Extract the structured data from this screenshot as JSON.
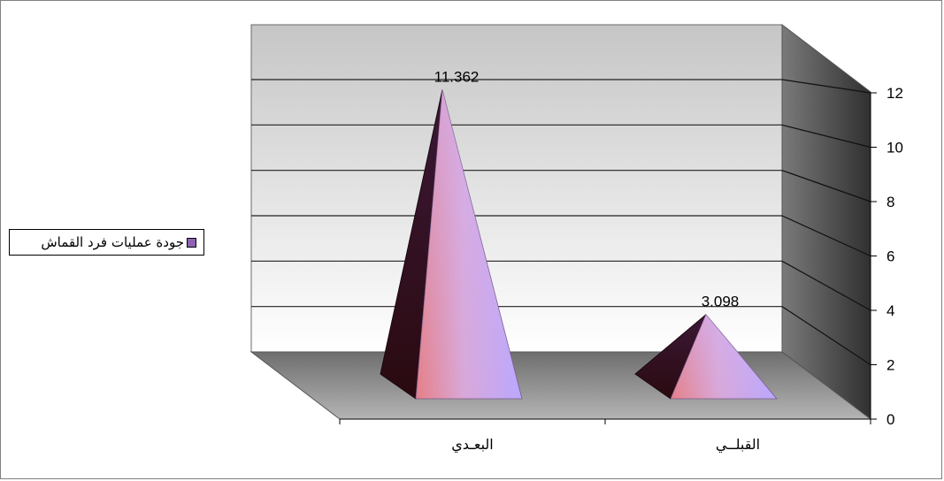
{
  "chart_data": {
    "type": "bar",
    "shape": "pyramid-3d",
    "categories": [
      "البعـدي",
      "القبلــي"
    ],
    "series": [
      {
        "name": "جودة عمليات فرد القماش",
        "values": [
          11.362,
          3.098
        ]
      }
    ],
    "data_labels": [
      "11.362",
      "3.098"
    ],
    "y_ticks": [
      "0",
      "2",
      "4",
      "6",
      "8",
      "10",
      "12"
    ],
    "ylim": [
      0,
      12
    ],
    "grid": true,
    "legend_position": "left",
    "axis_side": "right",
    "colors": {
      "pyramid_light": "#cdb8ff",
      "pyramid_pink": "#e98a8a",
      "pyramid_dark": "#2a0f1a",
      "wall_top": "#c8c8c8",
      "wall_bottom": "#ffffff",
      "side_wall": "#4a4a4a",
      "floor": "#8a8a8a",
      "legend_swatch": "#8e63b7"
    }
  }
}
